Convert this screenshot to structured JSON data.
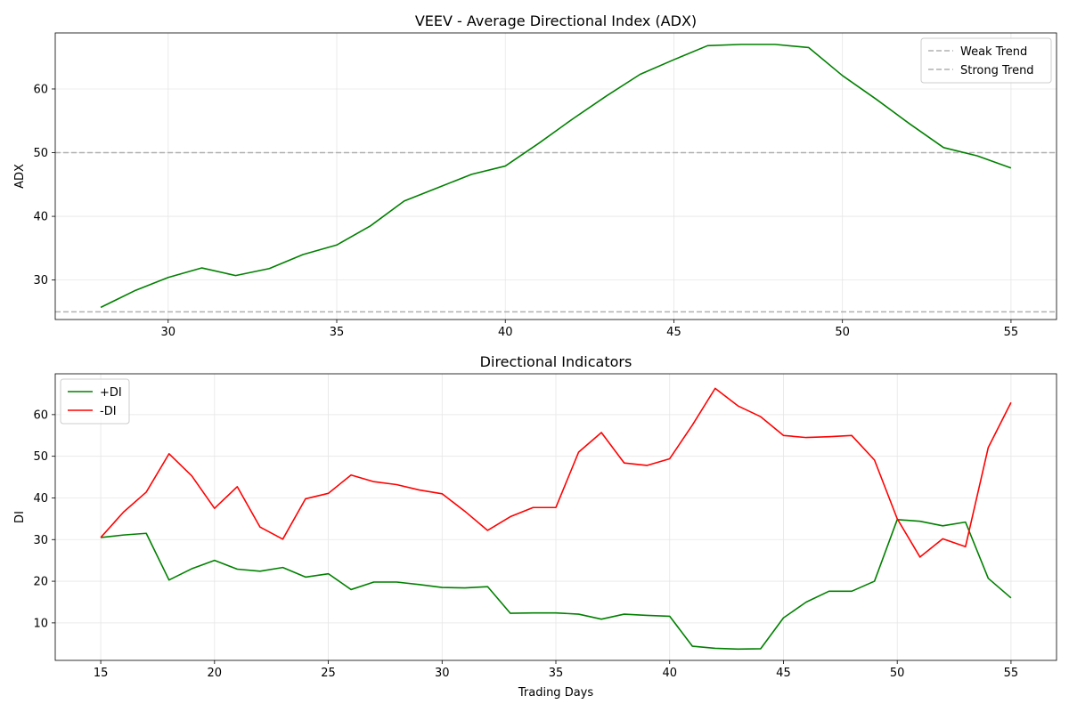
{
  "chart_data": [
    {
      "type": "line",
      "title": "VEEV - Average Directional Index (ADX)",
      "xlabel": "",
      "ylabel": "ADX",
      "xlim": [
        26.65,
        56.35
      ],
      "ylim": [
        23.8,
        68.8
      ],
      "xticks": [
        30,
        35,
        40,
        45,
        50,
        55
      ],
      "yticks": [
        30,
        40,
        50,
        60
      ],
      "grid": true,
      "legend_position": "upper-right",
      "x": [
        28,
        29,
        30,
        31,
        32,
        33,
        34,
        35,
        36,
        37,
        38,
        39,
        40,
        41,
        42,
        43,
        44,
        45,
        46,
        47,
        48,
        49,
        50,
        51,
        52,
        53,
        54,
        55
      ],
      "series": [
        {
          "name": "",
          "color": "#008000",
          "values": [
            25.7,
            28.3,
            30.4,
            31.9,
            30.7,
            31.8,
            34.0,
            35.5,
            38.5,
            42.4,
            44.5,
            46.6,
            47.9,
            51.5,
            55.3,
            58.9,
            62.3,
            64.6,
            66.8,
            67.0,
            67.0,
            66.5,
            62.1,
            58.4,
            54.5,
            50.8,
            49.5,
            47.6
          ]
        }
      ],
      "reference_lines": [
        {
          "name": "Weak Trend",
          "y": 25,
          "color": "#b0b0b0",
          "style": "dashed"
        },
        {
          "name": "Strong Trend",
          "y": 50,
          "color": "#b0b0b0",
          "style": "dashed"
        }
      ]
    },
    {
      "type": "line",
      "title": "Directional Indicators",
      "xlabel": "Trading Days",
      "ylabel": "DI",
      "xlim": [
        13,
        57
      ],
      "ylim": [
        1,
        69.8
      ],
      "xticks": [
        15,
        20,
        25,
        30,
        35,
        40,
        45,
        50,
        55
      ],
      "yticks": [
        10,
        20,
        30,
        40,
        50,
        60
      ],
      "grid": true,
      "legend_position": "upper-left",
      "x": [
        15,
        16,
        17,
        18,
        19,
        20,
        21,
        22,
        23,
        24,
        25,
        26,
        27,
        28,
        29,
        30,
        31,
        32,
        33,
        34,
        35,
        36,
        37,
        38,
        39,
        40,
        41,
        42,
        43,
        44,
        45,
        46,
        47,
        48,
        49,
        50,
        51,
        52,
        53,
        54,
        55
      ],
      "series": [
        {
          "name": "+DI",
          "color": "#008000",
          "values": [
            30.5,
            31.1,
            31.5,
            20.3,
            23.0,
            25.0,
            22.9,
            22.4,
            23.3,
            21.0,
            21.8,
            18.0,
            19.8,
            19.8,
            19.2,
            18.5,
            18.4,
            18.7,
            12.3,
            12.4,
            12.4,
            12.1,
            10.9,
            12.1,
            11.8,
            11.6,
            4.4,
            3.9,
            3.7,
            3.8,
            11.2,
            15.0,
            17.6,
            17.6,
            20.0,
            34.8,
            34.4,
            33.3,
            34.2,
            20.7,
            16.0
          ]
        },
        {
          "name": "-DI",
          "color": "#ff0000",
          "values": [
            30.5,
            36.6,
            41.4,
            50.6,
            45.3,
            37.5,
            42.7,
            33.0,
            30.1,
            39.8,
            41.1,
            45.5,
            43.9,
            43.2,
            41.9,
            41.0,
            36.8,
            32.2,
            35.5,
            37.7,
            37.7,
            51.0,
            55.7,
            48.4,
            47.8,
            49.4,
            57.5,
            66.3,
            62.1,
            59.5,
            55.0,
            54.5,
            54.7,
            55.0,
            49.1,
            35.0,
            25.8,
            30.2,
            28.3,
            52.1,
            62.9
          ]
        }
      ]
    }
  ]
}
